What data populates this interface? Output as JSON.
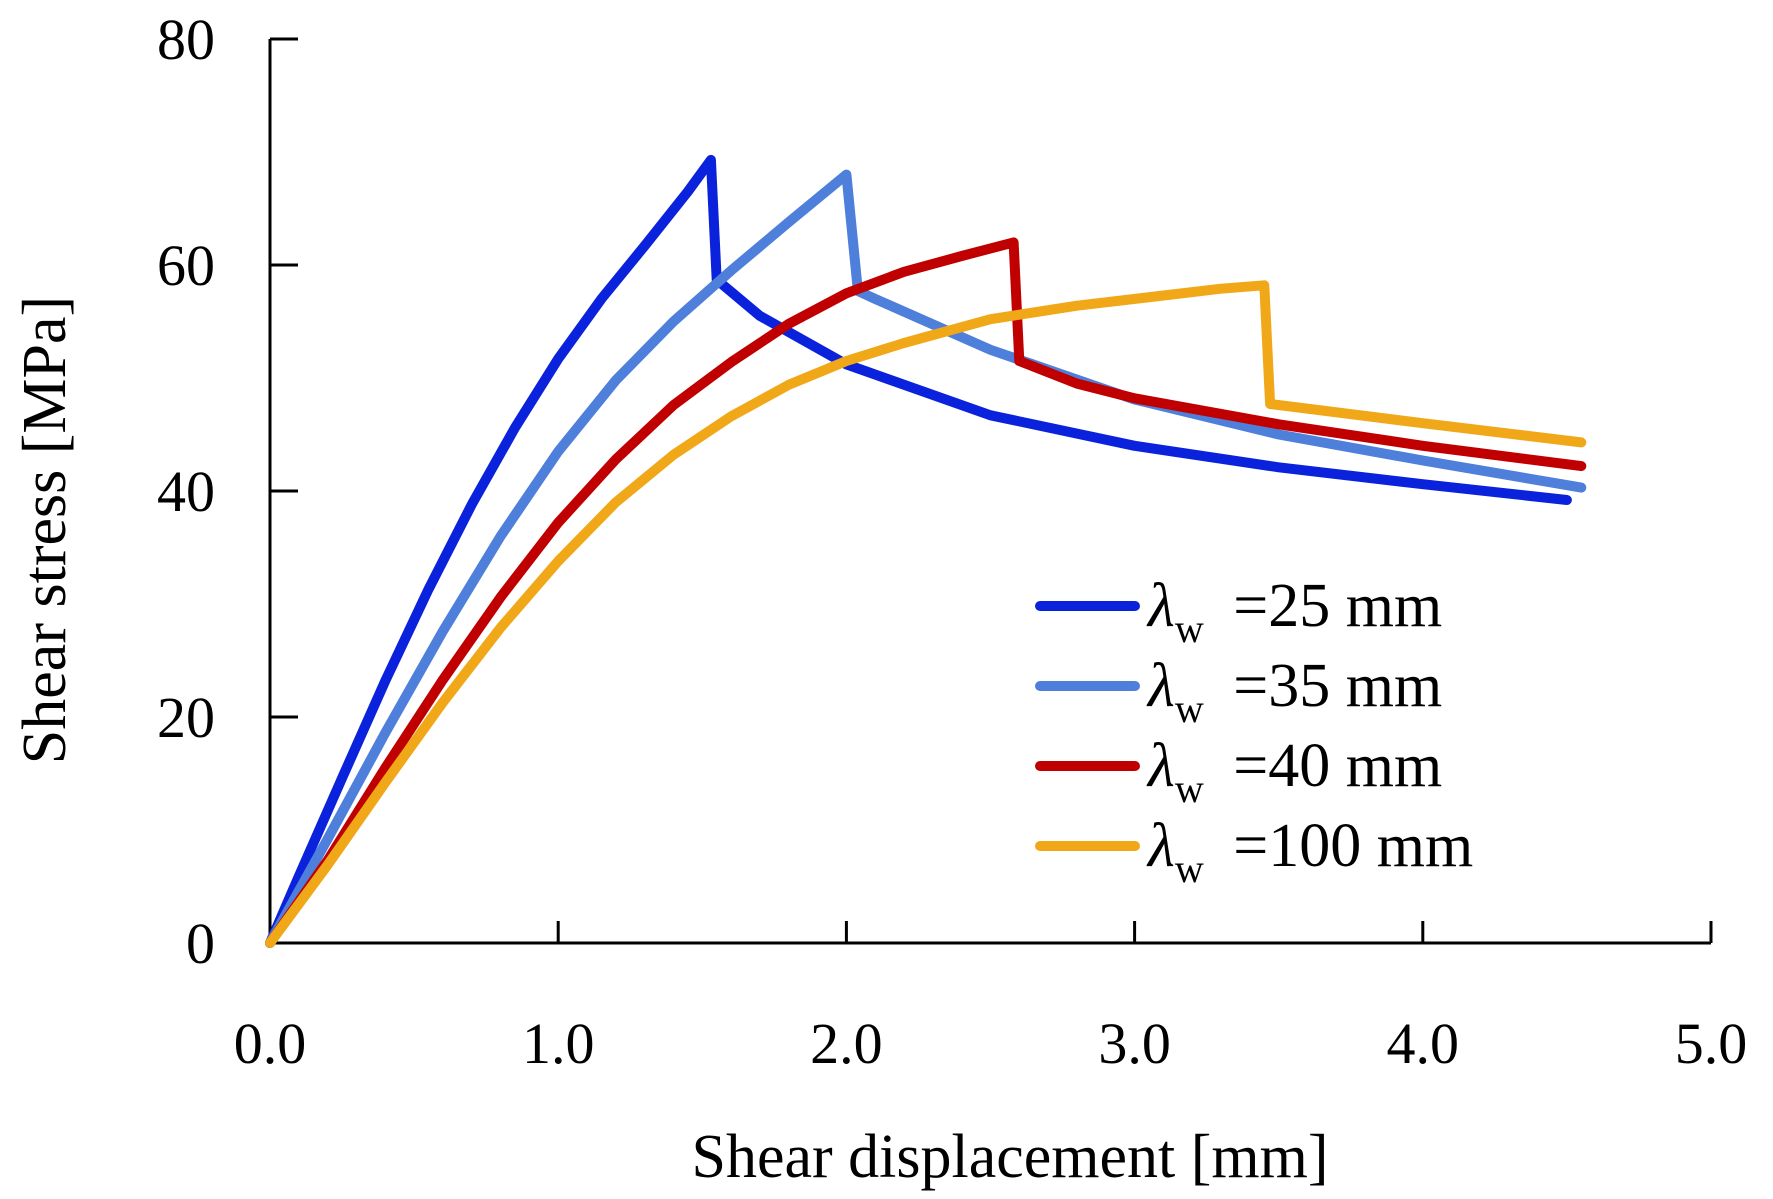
{
  "chart_data": {
    "type": "line",
    "title": "",
    "xlabel": "Shear displacement [mm]",
    "ylabel": "Shear stress [MPa]",
    "xlim": [
      0,
      5
    ],
    "ylim": [
      0,
      80
    ],
    "xticks": [
      0,
      1,
      2,
      3,
      4,
      5
    ],
    "xtick_labels": [
      "0.0",
      "1.0",
      "2.0",
      "3.0",
      "4.0",
      "5.0"
    ],
    "yticks": [
      0,
      20,
      40,
      60,
      80
    ],
    "ytick_labels": [
      "0",
      "20",
      "40",
      "60",
      "80"
    ],
    "grid": false,
    "legend_position": "bottom-right",
    "legend_symbol": "λ",
    "legend_subscript": "w",
    "series": [
      {
        "name": "λw =25 mm",
        "legend_value": " =25 mm",
        "color": "#0a22dc",
        "points": [
          [
            0,
            0
          ],
          [
            0.1,
            5.9
          ],
          [
            0.25,
            14.6
          ],
          [
            0.4,
            23.2
          ],
          [
            0.55,
            31.3
          ],
          [
            0.7,
            38.8
          ],
          [
            0.85,
            45.6
          ],
          [
            1.0,
            51.7
          ],
          [
            1.15,
            57.0
          ],
          [
            1.3,
            61.7
          ],
          [
            1.45,
            66.5
          ],
          [
            1.53,
            69.3
          ],
          [
            1.55,
            58.7
          ],
          [
            1.7,
            55.5
          ],
          [
            2.0,
            51.2
          ],
          [
            2.5,
            46.7
          ],
          [
            3.0,
            44.0
          ],
          [
            3.5,
            42.1
          ],
          [
            4.0,
            40.6
          ],
          [
            4.5,
            39.2
          ]
        ]
      },
      {
        "name": "λw =35 mm",
        "legend_value": " =35 mm",
        "color": "#4e7fdb",
        "points": [
          [
            0,
            0
          ],
          [
            0.2,
            9.2
          ],
          [
            0.4,
            18.6
          ],
          [
            0.6,
            27.6
          ],
          [
            0.8,
            36.0
          ],
          [
            1.0,
            43.5
          ],
          [
            1.2,
            49.8
          ],
          [
            1.4,
            55.0
          ],
          [
            1.6,
            59.5
          ],
          [
            1.8,
            63.8
          ],
          [
            2.0,
            68.0
          ],
          [
            2.04,
            57.7
          ],
          [
            2.1,
            57.0
          ],
          [
            2.5,
            52.5
          ],
          [
            3.0,
            48.1
          ],
          [
            3.5,
            45.0
          ],
          [
            4.0,
            42.7
          ],
          [
            4.55,
            40.3
          ]
        ]
      },
      {
        "name": "λw =40 mm",
        "legend_value": " =40 mm",
        "color": "#c00000",
        "points": [
          [
            0,
            0
          ],
          [
            0.2,
            7.3
          ],
          [
            0.4,
            15.5
          ],
          [
            0.6,
            23.3
          ],
          [
            0.8,
            30.6
          ],
          [
            1.0,
            37.2
          ],
          [
            1.2,
            42.8
          ],
          [
            1.4,
            47.6
          ],
          [
            1.6,
            51.4
          ],
          [
            1.8,
            54.8
          ],
          [
            2.0,
            57.5
          ],
          [
            2.2,
            59.4
          ],
          [
            2.4,
            60.8
          ],
          [
            2.58,
            62.0
          ],
          [
            2.6,
            51.5
          ],
          [
            2.8,
            49.5
          ],
          [
            3.0,
            48.2
          ],
          [
            3.5,
            45.9
          ],
          [
            4.0,
            44.0
          ],
          [
            4.55,
            42.2
          ]
        ]
      },
      {
        "name": "λw =100 mm",
        "legend_value": " =100 mm",
        "color": "#f0a818",
        "points": [
          [
            0,
            0
          ],
          [
            0.2,
            6.9
          ],
          [
            0.4,
            14.2
          ],
          [
            0.6,
            21.3
          ],
          [
            0.8,
            27.9
          ],
          [
            1.0,
            33.8
          ],
          [
            1.2,
            39.0
          ],
          [
            1.4,
            43.2
          ],
          [
            1.6,
            46.6
          ],
          [
            1.8,
            49.4
          ],
          [
            2.0,
            51.5
          ],
          [
            2.2,
            53.1
          ],
          [
            2.5,
            55.2
          ],
          [
            2.8,
            56.4
          ],
          [
            3.1,
            57.3
          ],
          [
            3.3,
            57.9
          ],
          [
            3.45,
            58.2
          ],
          [
            3.47,
            47.7
          ],
          [
            4.0,
            46.0
          ],
          [
            4.55,
            44.3
          ]
        ]
      }
    ]
  }
}
